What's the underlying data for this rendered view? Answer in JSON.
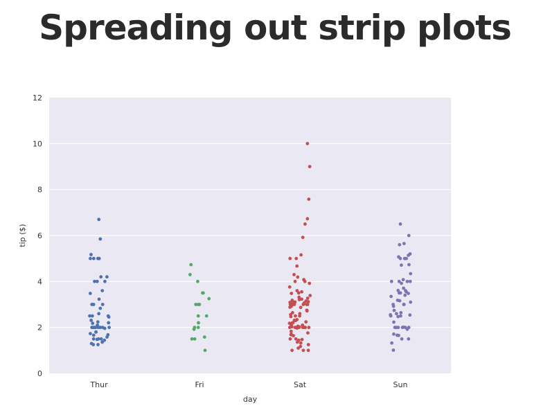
{
  "slide": {
    "title": "Spreading out strip plots"
  },
  "chart_data": {
    "type": "scatter",
    "subtype": "strip",
    "title": "",
    "xlabel": "day",
    "ylabel": "tip ($)",
    "categories": [
      "Thur",
      "Fri",
      "Sat",
      "Sun"
    ],
    "ylim": [
      0,
      12
    ],
    "yticks": [
      "0",
      "2",
      "4",
      "6",
      "8",
      "10",
      "12"
    ],
    "grid": true,
    "background_color": "#eae8f2",
    "grid_color": "#ffffff",
    "series": [
      {
        "category": "Thur",
        "color": "#4c72b0",
        "values": [
          6.7,
          5.85,
          5.17,
          5.0,
          5.0,
          5.0,
          5.0,
          4.2,
          4.2,
          4.0,
          4.0,
          4.0,
          3.6,
          3.48,
          3.23,
          3.0,
          3.0,
          3.0,
          2.83,
          2.6,
          2.5,
          2.5,
          2.5,
          2.45,
          2.31,
          2.24,
          2.2,
          2.18,
          2.1,
          2.0,
          2.0,
          2.0,
          2.0,
          2.0,
          2.0,
          2.0,
          2.0,
          2.0,
          2.0,
          1.96,
          1.8,
          1.8,
          1.73,
          1.68,
          1.66,
          1.58,
          1.5,
          1.5,
          1.5,
          1.48,
          1.44,
          1.36,
          1.3,
          1.25,
          1.25
        ]
      },
      {
        "category": "Fri",
        "color": "#55a868",
        "values": [
          4.73,
          4.3,
          4.0,
          3.5,
          3.5,
          3.25,
          3.0,
          3.0,
          3.0,
          2.5,
          2.5,
          2.2,
          2.0,
          2.0,
          1.92,
          1.58,
          1.5,
          1.5,
          1.0
        ]
      },
      {
        "category": "Sat",
        "color": "#c44e52",
        "values": [
          10.0,
          9.0,
          7.58,
          6.73,
          6.5,
          5.92,
          5.16,
          5.0,
          5.0,
          4.67,
          4.3,
          4.19,
          4.08,
          4.0,
          4.0,
          3.92,
          3.76,
          3.6,
          3.55,
          3.5,
          3.48,
          3.39,
          3.31,
          3.27,
          3.23,
          3.21,
          3.18,
          3.15,
          3.12,
          3.11,
          3.09,
          3.08,
          3.07,
          3.02,
          3.0,
          3.0,
          3.0,
          3.0,
          3.0,
          3.0,
          2.92,
          2.88,
          2.87,
          2.75,
          2.72,
          2.64,
          2.6,
          2.56,
          2.5,
          2.5,
          2.47,
          2.34,
          2.31,
          2.3,
          2.24,
          2.2,
          2.2,
          2.18,
          2.1,
          2.09,
          2.05,
          2.03,
          2.02,
          2.01,
          2.0,
          2.0,
          2.0,
          2.0,
          2.0,
          2.0,
          2.0,
          2.0,
          2.0,
          1.97,
          1.83,
          1.76,
          1.71,
          1.68,
          1.64,
          1.5,
          1.5,
          1.47,
          1.44,
          1.36,
          1.32,
          1.25,
          1.17,
          1.1,
          1.0,
          1.0,
          1.0
        ]
      },
      {
        "category": "Sun",
        "color": "#8172b2",
        "values": [
          6.5,
          6.0,
          5.65,
          5.6,
          5.2,
          5.14,
          5.07,
          5.0,
          5.0,
          5.0,
          4.73,
          4.71,
          4.34,
          4.08,
          4.0,
          4.0,
          4.0,
          4.0,
          3.92,
          3.71,
          3.61,
          3.6,
          3.55,
          3.5,
          3.5,
          3.48,
          3.4,
          3.35,
          3.18,
          3.16,
          3.1,
          3.0,
          3.0,
          3.0,
          2.92,
          2.74,
          2.64,
          2.6,
          2.55,
          2.54,
          2.5,
          2.5,
          2.47,
          2.23,
          2.01,
          2.0,
          2.0,
          2.0,
          2.0,
          2.0,
          2.0,
          1.92,
          1.71,
          1.66,
          1.65,
          1.5,
          1.5,
          1.32,
          1.01
        ]
      }
    ]
  }
}
